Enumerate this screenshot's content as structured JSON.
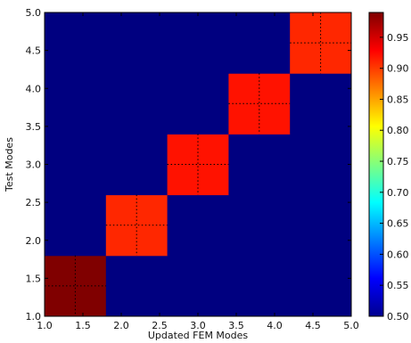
{
  "chart_data": {
    "type": "heatmap",
    "title": "",
    "xlabel": "Updated FEM Modes",
    "ylabel": "Test Modes",
    "xlim": [
      1.0,
      5.0
    ],
    "ylim": [
      1.0,
      5.0
    ],
    "grid": false,
    "x_ticks": [
      "1.0",
      "1.5",
      "2.0",
      "2.5",
      "3.0",
      "3.5",
      "4.0",
      "4.5",
      "5.0"
    ],
    "y_ticks": [
      "1.0",
      "1.5",
      "2.0",
      "2.5",
      "3.0",
      "3.5",
      "4.0",
      "4.5",
      "5.0"
    ],
    "matrix_size": 5,
    "values": [
      [
        0.99,
        0.5,
        0.5,
        0.5,
        0.5
      ],
      [
        0.5,
        0.91,
        0.5,
        0.5,
        0.5
      ],
      [
        0.5,
        0.5,
        0.92,
        0.5,
        0.5
      ],
      [
        0.5,
        0.5,
        0.5,
        0.92,
        0.5
      ],
      [
        0.5,
        0.5,
        0.5,
        0.5,
        0.91
      ]
    ],
    "colorbar": {
      "colormap": "jet",
      "range": [
        0.5,
        0.99
      ],
      "ticks": [
        "0.50",
        "0.55",
        "0.60",
        "0.65",
        "0.70",
        "0.75",
        "0.80",
        "0.85",
        "0.90",
        "0.95"
      ]
    }
  }
}
